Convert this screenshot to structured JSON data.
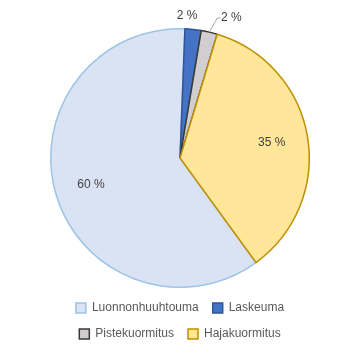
{
  "chart_data": {
    "type": "pie",
    "categories": [
      "Luonnonhuuhtouma",
      "Laskeuma",
      "Pistekuormitus",
      "Hajakuormitus"
    ],
    "values": [
      60,
      2,
      2,
      35
    ],
    "value_labels": [
      "60 %",
      "2 %",
      "2 %",
      "35 %"
    ],
    "colors": [
      "#dae3f3",
      "#4472c4",
      "#d0cece",
      "#ffe699"
    ],
    "data_labels": true,
    "legend": "bottom"
  }
}
